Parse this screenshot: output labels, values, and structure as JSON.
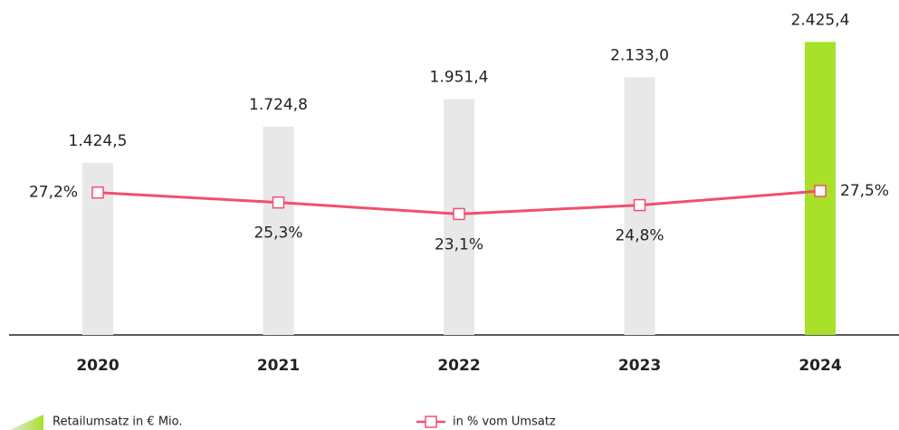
{
  "chart_data": {
    "type": "bar-line",
    "categories": [
      "2020",
      "2021",
      "2022",
      "2023",
      "2024"
    ],
    "series": [
      {
        "name": "Retailumsatz in € Mio.",
        "type": "bar",
        "colors": [
          "#e8e8e8",
          "#e8e8e8",
          "#e8e8e8",
          "#e8e8e8",
          "#a8e02a"
        ],
        "values": [
          1424.5,
          1724.8,
          1951.4,
          2133.0,
          2425.4
        ],
        "value_labels": [
          "1.424,5",
          "1.724,8",
          "1.951,4",
          "2.133,0",
          "2.425,4"
        ]
      },
      {
        "name": "in % vom Umsatz",
        "type": "line",
        "axis": "y2",
        "color": "#f0506e",
        "values": [
          27.2,
          25.3,
          23.1,
          24.8,
          27.5
        ],
        "value_labels": [
          "27,2%",
          "25,3%",
          "23,1%",
          "24,8%",
          "27,5%"
        ]
      }
    ],
    "ylim": [
      0,
      2600
    ],
    "y2lim": [
      0,
      60
    ]
  }
}
